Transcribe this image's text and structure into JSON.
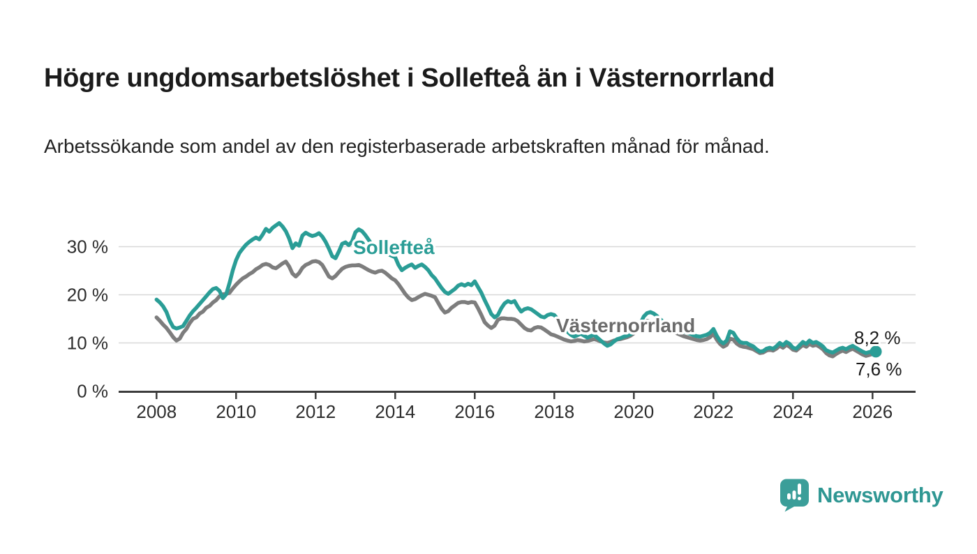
{
  "header": {
    "title": "Högre ungdomsarbetslöshet i Sollefteå än i Västernorrland",
    "subtitle": "Arbetssökande som andel av den registerbaserade arbetskraften månad för månad."
  },
  "footer": {
    "brand": "Newsworthy",
    "logo_icon": "newsworthy-speech-bubble-bar-chart-icon"
  },
  "colors": {
    "solleftea": "#2a9d96",
    "vasternorrland_line": "#7d7d7d",
    "vasternorrland_label": "#6b6b6b",
    "brand_teal": "#349a95",
    "axis": "#3c3c3c",
    "tick_text": "#2d2d2d",
    "grid": "#d8d8d8",
    "value_label_text": "#1a1a1a"
  },
  "chart_data": {
    "type": "line",
    "title": "Högre ungdomsarbetslöshet i Sollefteå än i Västernorrland",
    "subtitle": "Arbetssökande som andel av den registerbaserade arbetskraften månad för månad.",
    "unit": "%",
    "x_start_year": 2008,
    "x_resolution": "monthly",
    "x_end": "2026-02",
    "xlim": [
      2007.0,
      2027.1
    ],
    "ylim": [
      0,
      37
    ],
    "grid": "horizontal",
    "x_ticks": [
      2008,
      2010,
      2012,
      2014,
      2016,
      2018,
      2020,
      2022,
      2024,
      2026
    ],
    "y_ticks": [
      {
        "value": 0,
        "label": "0 %"
      },
      {
        "value": 10,
        "label": "10 %"
      },
      {
        "value": 20,
        "label": "20 %"
      },
      {
        "value": 30,
        "label": "30 %"
      }
    ],
    "legend_position": "inline-labels",
    "series": [
      {
        "name": "Västernorrland",
        "end_label": "7,6 %",
        "last_value": 7.6,
        "values": [
          15.3,
          14.6,
          13.8,
          13.1,
          12.2,
          11.2,
          10.5,
          10.9,
          12.1,
          12.9,
          14.1,
          15.0,
          15.3,
          16.1,
          16.5,
          17.3,
          17.7,
          18.4,
          18.9,
          19.7,
          20.1,
          20.2,
          20.4,
          21.3,
          22.1,
          22.8,
          23.4,
          23.8,
          24.3,
          24.7,
          25.3,
          25.7,
          26.2,
          26.4,
          26.2,
          25.7,
          25.5,
          26.0,
          26.5,
          26.9,
          25.9,
          24.4,
          23.8,
          24.5,
          25.6,
          26.2,
          26.5,
          26.9,
          27.0,
          26.8,
          26.2,
          25.0,
          23.8,
          23.4,
          23.9,
          24.7,
          25.4,
          25.8,
          26.0,
          26.1,
          26.1,
          26.2,
          25.9,
          25.5,
          25.1,
          24.8,
          24.6,
          24.9,
          25.0,
          24.6,
          24.0,
          23.4,
          23.0,
          22.2,
          21.2,
          20.2,
          19.4,
          18.9,
          19.1,
          19.5,
          19.9,
          20.2,
          20.0,
          19.8,
          19.5,
          18.3,
          17.1,
          16.3,
          16.6,
          17.3,
          17.8,
          18.3,
          18.5,
          18.5,
          18.3,
          18.5,
          18.4,
          17.2,
          15.8,
          14.3,
          13.6,
          13.1,
          13.6,
          14.8,
          15.1,
          15.1,
          15.0,
          15.0,
          14.9,
          14.5,
          13.8,
          13.1,
          12.7,
          12.6,
          13.1,
          13.3,
          13.2,
          12.8,
          12.3,
          11.8,
          11.6,
          11.3,
          11.0,
          10.7,
          10.5,
          10.3,
          10.4,
          10.6,
          10.5,
          10.3,
          10.4,
          10.6,
          10.8,
          10.6,
          10.3,
          10.1,
          10.0,
          10.2,
          10.5,
          10.7,
          10.8,
          11.0,
          11.2,
          11.5,
          12.0,
          12.5,
          13.3,
          14.2,
          14.6,
          14.4,
          14.0,
          13.6,
          13.2,
          12.9,
          12.6,
          12.4,
          12.3,
          12.0,
          11.7,
          11.4,
          11.2,
          11.0,
          10.8,
          10.6,
          10.5,
          10.6,
          10.8,
          11.2,
          11.9,
          10.7,
          9.8,
          9.2,
          9.6,
          10.9,
          10.7,
          9.9,
          9.4,
          9.2,
          9.1,
          8.9,
          8.7,
          8.3,
          7.9,
          8.0,
          8.4,
          8.6,
          8.4,
          8.8,
          9.4,
          9.0,
          9.6,
          9.2,
          8.6,
          8.4,
          9.0,
          9.6,
          9.2,
          9.8,
          9.4,
          9.6,
          9.2,
          8.7,
          7.9,
          7.4,
          7.2,
          7.7,
          8.1,
          8.4,
          8.1,
          8.5,
          8.8,
          8.4,
          8.0,
          7.6,
          7.3,
          7.5,
          7.7,
          7.6
        ]
      },
      {
        "name": "Sollefteå",
        "end_label": "8,2 %",
        "last_value": 8.2,
        "end_dot": true,
        "values": [
          19.0,
          18.4,
          17.6,
          16.4,
          14.6,
          13.3,
          13.0,
          13.2,
          13.5,
          14.6,
          15.7,
          16.6,
          17.3,
          18.1,
          18.9,
          19.7,
          20.5,
          21.2,
          21.4,
          20.8,
          19.3,
          20.1,
          22.4,
          25.1,
          27.2,
          28.7,
          29.6,
          30.4,
          31.0,
          31.5,
          31.9,
          31.5,
          32.5,
          33.7,
          33.1,
          33.9,
          34.4,
          34.9,
          34.2,
          33.2,
          31.7,
          29.7,
          30.7,
          30.2,
          32.3,
          32.9,
          32.5,
          32.2,
          32.4,
          32.8,
          32.1,
          31.0,
          29.6,
          28.0,
          27.6,
          29.0,
          30.6,
          30.9,
          30.3,
          31.1,
          33.0,
          33.6,
          33.2,
          32.4,
          31.4,
          30.4,
          29.8,
          30.2,
          29.6,
          28.9,
          28.4,
          28.1,
          27.8,
          26.2,
          25.1,
          25.6,
          26.0,
          26.3,
          25.6,
          26.0,
          26.3,
          25.8,
          25.1,
          24.1,
          23.4,
          22.4,
          21.4,
          20.6,
          20.2,
          20.7,
          21.2,
          21.9,
          22.2,
          21.9,
          22.3,
          22.0,
          22.8,
          21.6,
          20.4,
          18.9,
          17.5,
          16.0,
          15.3,
          15.8,
          17.2,
          18.2,
          18.7,
          18.4,
          18.7,
          17.5,
          16.5,
          17.0,
          17.2,
          17.0,
          16.5,
          16.0,
          15.5,
          15.3,
          15.8,
          16.0,
          15.8,
          15.0,
          14.1,
          13.1,
          12.3,
          11.7,
          11.3,
          11.6,
          11.9,
          11.5,
          11.1,
          11.4,
          11.7,
          11.1,
          10.5,
          9.9,
          9.4,
          9.7,
          10.3,
          10.8,
          11.0,
          11.3,
          11.5,
          11.8,
          12.3,
          12.9,
          14.1,
          15.5,
          16.2,
          16.4,
          16.1,
          15.6,
          14.9,
          14.3,
          13.9,
          13.6,
          13.5,
          13.1,
          12.7,
          12.3,
          12.1,
          11.9,
          11.6,
          11.4,
          11.3,
          11.5,
          11.7,
          12.1,
          12.9,
          11.5,
          10.4,
          9.9,
          10.5,
          12.4,
          12.1,
          11.0,
          10.2,
          10.0,
          10.0,
          9.6,
          9.3,
          8.7,
          8.2,
          8.3,
          8.8,
          9.0,
          8.8,
          9.3,
          10.0,
          9.5,
          10.2,
          9.8,
          9.0,
          8.8,
          9.5,
          10.2,
          9.8,
          10.5,
          10.0,
          10.2,
          9.8,
          9.3,
          8.5,
          8.2,
          8.0,
          8.4,
          8.8,
          9.0,
          8.7,
          9.1,
          9.4,
          9.0,
          8.6,
          8.2,
          7.9,
          8.1,
          8.3,
          8.2
        ]
      }
    ],
    "annotations": [
      {
        "text": "Sollefteå",
        "type": "series-label",
        "series": "Sollefteå"
      },
      {
        "text": "Västernorrland",
        "type": "series-label",
        "series": "Västernorrland"
      },
      {
        "text": "8,2 %",
        "type": "end-value-label",
        "series": "Sollefteå"
      },
      {
        "text": "7,6 %",
        "type": "end-value-label",
        "series": "Västernorrland"
      }
    ]
  }
}
